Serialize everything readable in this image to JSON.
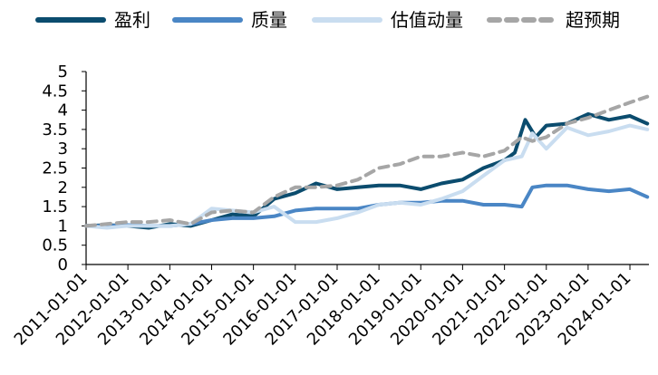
{
  "chart_data": {
    "type": "line",
    "title": "",
    "xlabel": "",
    "ylabel": "",
    "ylim": [
      0,
      5
    ],
    "yticks": [
      "0",
      "0.5",
      "1",
      "1.5",
      "2",
      "2.5",
      "3",
      "3.5",
      "4",
      "4.5",
      "5"
    ],
    "xticks": [
      "2011-01-01",
      "2012-01-01",
      "2013-01-01",
      "2014-01-01",
      "2015-01-01",
      "2016-01-01",
      "2017-01-01",
      "2018-01-01",
      "2019-01-01",
      "2020-01-01",
      "2021-01-01",
      "2022-01-01",
      "2023-01-01",
      "2024-01-01"
    ],
    "grid": false,
    "legend_position": "top",
    "series": [
      {
        "name": "盈利",
        "color": "#0B4C6E",
        "style": "solid",
        "points": [
          [
            "2011-01-01",
            1.0
          ],
          [
            "2011-07-01",
            1.02
          ],
          [
            "2012-01-01",
            1.0
          ],
          [
            "2012-07-01",
            0.95
          ],
          [
            "2013-01-01",
            1.05
          ],
          [
            "2013-07-01",
            1.0
          ],
          [
            "2014-01-01",
            1.15
          ],
          [
            "2014-07-01",
            1.3
          ],
          [
            "2015-01-01",
            1.25
          ],
          [
            "2015-07-01",
            1.7
          ],
          [
            "2016-01-01",
            1.85
          ],
          [
            "2016-07-01",
            2.1
          ],
          [
            "2017-01-01",
            1.95
          ],
          [
            "2017-07-01",
            2.0
          ],
          [
            "2018-01-01",
            2.05
          ],
          [
            "2018-07-01",
            2.05
          ],
          [
            "2019-01-01",
            1.95
          ],
          [
            "2019-07-01",
            2.1
          ],
          [
            "2020-01-01",
            2.2
          ],
          [
            "2020-07-01",
            2.5
          ],
          [
            "2021-01-01",
            2.7
          ],
          [
            "2021-04-01",
            2.9
          ],
          [
            "2021-07-01",
            3.75
          ],
          [
            "2021-10-01",
            3.3
          ],
          [
            "2022-01-01",
            3.6
          ],
          [
            "2022-07-01",
            3.65
          ],
          [
            "2023-01-01",
            3.9
          ],
          [
            "2023-07-01",
            3.75
          ],
          [
            "2024-01-01",
            3.85
          ],
          [
            "2024-06-01",
            3.65
          ]
        ]
      },
      {
        "name": "质量",
        "color": "#4A86C5",
        "style": "solid",
        "points": [
          [
            "2011-01-01",
            1.0
          ],
          [
            "2011-07-01",
            1.0
          ],
          [
            "2012-01-01",
            1.02
          ],
          [
            "2012-07-01",
            1.0
          ],
          [
            "2013-01-01",
            1.0
          ],
          [
            "2013-07-01",
            1.05
          ],
          [
            "2014-01-01",
            1.15
          ],
          [
            "2014-07-01",
            1.2
          ],
          [
            "2015-01-01",
            1.2
          ],
          [
            "2015-07-01",
            1.25
          ],
          [
            "2016-01-01",
            1.4
          ],
          [
            "2016-07-01",
            1.45
          ],
          [
            "2017-01-01",
            1.45
          ],
          [
            "2017-07-01",
            1.45
          ],
          [
            "2018-01-01",
            1.55
          ],
          [
            "2018-07-01",
            1.6
          ],
          [
            "2019-01-01",
            1.6
          ],
          [
            "2019-07-01",
            1.65
          ],
          [
            "2020-01-01",
            1.65
          ],
          [
            "2020-07-01",
            1.55
          ],
          [
            "2021-01-01",
            1.55
          ],
          [
            "2021-06-01",
            1.5
          ],
          [
            "2021-09-01",
            2.0
          ],
          [
            "2022-01-01",
            2.05
          ],
          [
            "2022-07-01",
            2.05
          ],
          [
            "2023-01-01",
            1.95
          ],
          [
            "2023-07-01",
            1.9
          ],
          [
            "2024-01-01",
            1.95
          ],
          [
            "2024-06-01",
            1.75
          ]
        ]
      },
      {
        "name": "估值动量",
        "color": "#C9DDF0",
        "style": "solid",
        "points": [
          [
            "2011-01-01",
            1.0
          ],
          [
            "2011-07-01",
            0.95
          ],
          [
            "2012-01-01",
            1.0
          ],
          [
            "2012-07-01",
            1.0
          ],
          [
            "2013-01-01",
            1.0
          ],
          [
            "2013-07-01",
            1.05
          ],
          [
            "2014-01-01",
            1.45
          ],
          [
            "2014-07-01",
            1.4
          ],
          [
            "2015-01-01",
            1.35
          ],
          [
            "2015-07-01",
            1.5
          ],
          [
            "2016-01-01",
            1.1
          ],
          [
            "2016-07-01",
            1.1
          ],
          [
            "2017-01-01",
            1.2
          ],
          [
            "2017-07-01",
            1.35
          ],
          [
            "2018-01-01",
            1.55
          ],
          [
            "2018-07-01",
            1.6
          ],
          [
            "2019-01-01",
            1.55
          ],
          [
            "2019-07-01",
            1.7
          ],
          [
            "2020-01-01",
            1.9
          ],
          [
            "2020-07-01",
            2.3
          ],
          [
            "2021-01-01",
            2.7
          ],
          [
            "2021-06-01",
            2.8
          ],
          [
            "2021-09-01",
            3.4
          ],
          [
            "2022-01-01",
            3.0
          ],
          [
            "2022-07-01",
            3.55
          ],
          [
            "2023-01-01",
            3.35
          ],
          [
            "2023-07-01",
            3.45
          ],
          [
            "2024-01-01",
            3.6
          ],
          [
            "2024-06-01",
            3.5
          ]
        ]
      },
      {
        "name": "超预期",
        "color": "#A6A6A6",
        "style": "dashed",
        "points": [
          [
            "2011-01-01",
            1.0
          ],
          [
            "2011-07-01",
            1.05
          ],
          [
            "2012-01-01",
            1.1
          ],
          [
            "2012-07-01",
            1.1
          ],
          [
            "2013-01-01",
            1.15
          ],
          [
            "2013-07-01",
            1.05
          ],
          [
            "2014-01-01",
            1.35
          ],
          [
            "2014-07-01",
            1.4
          ],
          [
            "2015-01-01",
            1.35
          ],
          [
            "2015-07-01",
            1.75
          ],
          [
            "2016-01-01",
            2.0
          ],
          [
            "2016-07-01",
            2.0
          ],
          [
            "2017-01-01",
            2.05
          ],
          [
            "2017-07-01",
            2.2
          ],
          [
            "2018-01-01",
            2.5
          ],
          [
            "2018-07-01",
            2.6
          ],
          [
            "2019-01-01",
            2.8
          ],
          [
            "2019-07-01",
            2.8
          ],
          [
            "2020-01-01",
            2.9
          ],
          [
            "2020-07-01",
            2.8
          ],
          [
            "2021-01-01",
            2.95
          ],
          [
            "2021-06-01",
            3.3
          ],
          [
            "2021-09-01",
            3.2
          ],
          [
            "2022-01-01",
            3.3
          ],
          [
            "2022-07-01",
            3.65
          ],
          [
            "2023-01-01",
            3.8
          ],
          [
            "2023-07-01",
            4.0
          ],
          [
            "2024-01-01",
            4.2
          ],
          [
            "2024-06-01",
            4.35
          ]
        ]
      }
    ]
  }
}
